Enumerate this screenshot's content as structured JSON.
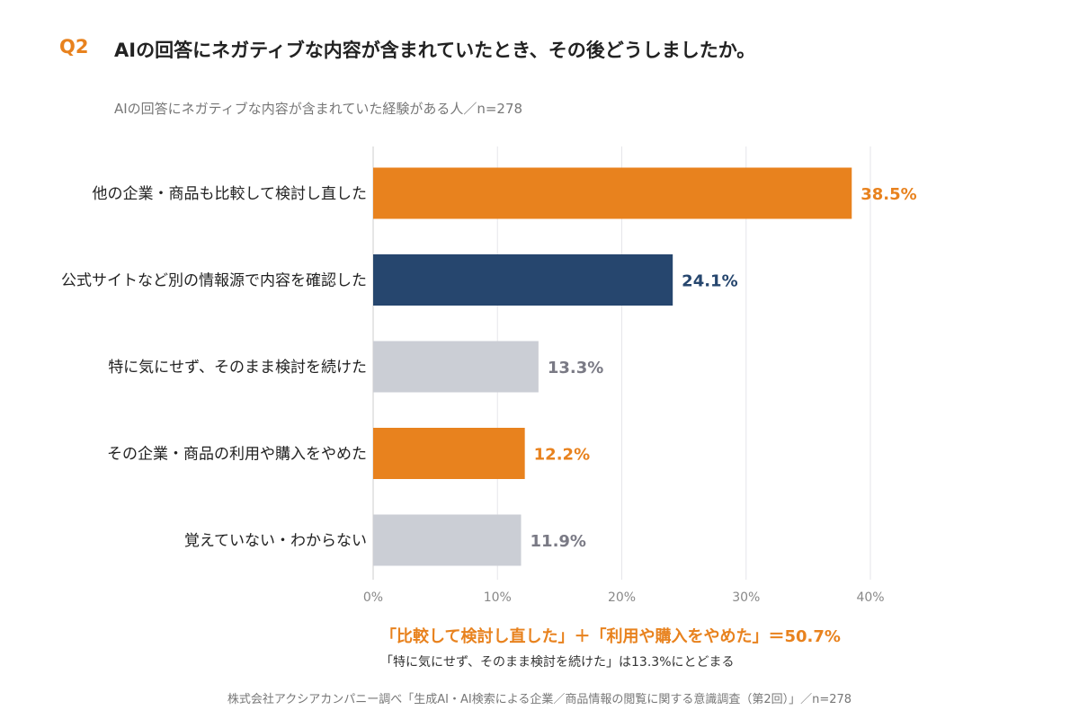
{
  "header": {
    "q_label": "Q2",
    "title": "AIの回答にネガティブな内容が含まれていたとき、その後どうしましたか。",
    "subtitle": "AIの回答にネガティブな内容が含まれていた経験がある人／n=278"
  },
  "colors": {
    "orange": "#E8821E",
    "navy": "#26466E",
    "gray_bar": "#CBCED5",
    "gray_label": "#7A7A85",
    "grid": "#E6E6EA",
    "axis": "#CCCCCC"
  },
  "chart_data": {
    "type": "bar",
    "orientation": "horizontal",
    "categories": [
      "他の企業・商品も比較して検討し直した",
      "公式サイトなど別の情報源で内容を確認した",
      "特に気にせず、そのまま検討を続けた",
      "その企業・商品の利用や購入をやめた",
      "覚えていない・わからない"
    ],
    "values": [
      38.5,
      24.1,
      13.3,
      12.2,
      11.9
    ],
    "value_labels": [
      "38.5%",
      "24.1%",
      "13.3%",
      "12.2%",
      "11.9%"
    ],
    "bar_colors": [
      "#E8821E",
      "#26466E",
      "#CBCED5",
      "#E8821E",
      "#CBCED5"
    ],
    "label_colors": [
      "#E8821E",
      "#26466E",
      "#7A7A85",
      "#E8821E",
      "#7A7A85"
    ],
    "xlim": [
      0,
      40
    ],
    "xticks": [
      0,
      10,
      20,
      30,
      40
    ],
    "xtick_labels": [
      "0%",
      "10%",
      "20%",
      "30%",
      "40%"
    ],
    "grid": true
  },
  "footer": {
    "summary": "「比較して検討し直した」＋「利用や購入をやめた」＝50.7%",
    "note": "「特に気にせず、そのまま検討を続けた」は13.3%にとどまる",
    "source": "株式会社アクシアカンパニー調べ「生成AI・AI検索による企業／商品情報の閲覧に関する意識調査（第2回）」／n=278"
  }
}
